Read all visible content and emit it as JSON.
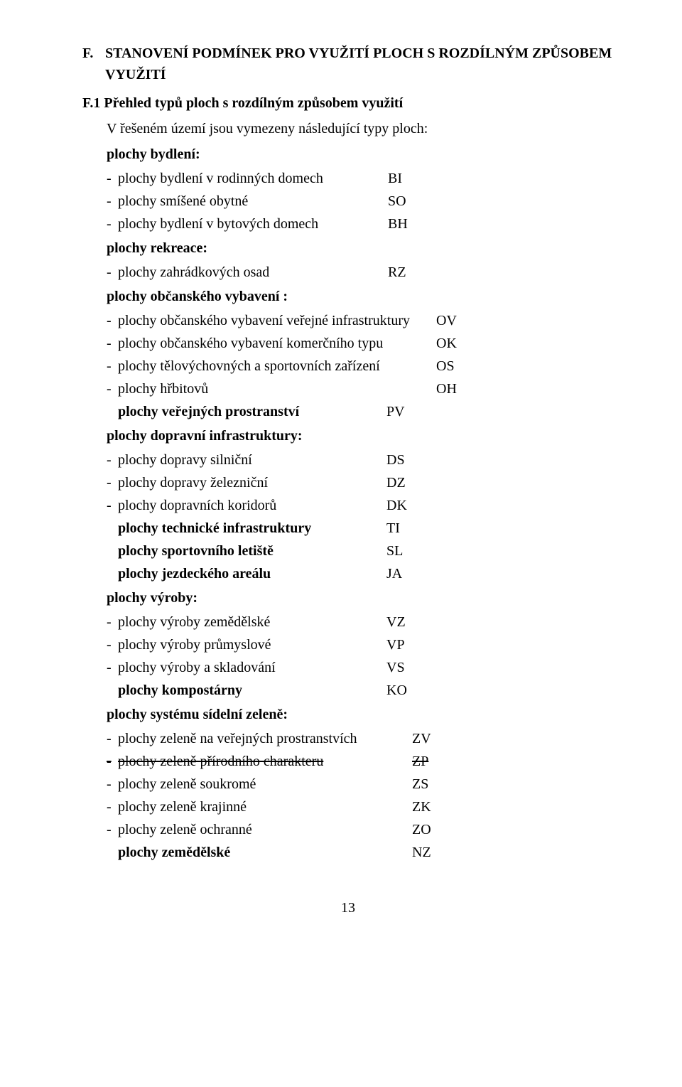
{
  "heading": {
    "letter": "F.",
    "text": "STANOVENÍ PODMÍNEK PRO VYUŽITÍ PLOCH S ROZDÍLNÝM ZPŮSOBEM VYUŽITÍ"
  },
  "subheading": "F.1 Přehled typů ploch s rozdílným způsobem využití",
  "intro": "V řešeném území jsou vymezeny následující typy ploch:",
  "groups": [
    {
      "label": "plochy bydlení:",
      "width": "w-narrow",
      "items": [
        {
          "label": "plochy bydlení v rodinných domech",
          "code": "BI",
          "dash": true
        },
        {
          "label": "plochy smíšené obytné",
          "code": "SO",
          "dash": true
        },
        {
          "label": "plochy bydlení v bytových domech",
          "code": "BH",
          "dash": true
        }
      ]
    },
    {
      "label": "plochy rekreace:",
      "width": "w-narrow",
      "items": [
        {
          "label": "plochy zahrádkových osad",
          "code": "RZ",
          "dash": true
        }
      ]
    },
    {
      "label": "plochy občanského vybavení :",
      "width": "w-wide",
      "items": [
        {
          "label": "plochy občanského vybavení veřejné infrastruktury",
          "code": "OV",
          "dash": true
        },
        {
          "label": "plochy občanského vybavení komerčního typu",
          "code": "OK",
          "dash": true
        },
        {
          "label": "plochy tělovýchovných a sportovních zařízení",
          "code": "OS",
          "dash": true
        },
        {
          "label": "plochy hřbitovů",
          "code": "OH",
          "dash": true
        }
      ]
    },
    {
      "label": null,
      "width": "w-narrow2",
      "items": [
        {
          "label": "plochy veřejných prostranství",
          "code": "PV",
          "dash": false,
          "bold": true
        }
      ]
    },
    {
      "label": "plochy dopravní infrastruktury:",
      "width": "w-narrow2",
      "items": [
        {
          "label": "plochy dopravy silniční",
          "code": "DS",
          "dash": true
        },
        {
          "label": "plochy dopravy železniční",
          "code": "DZ",
          "dash": true
        },
        {
          "label": "plochy dopravních koridorů",
          "code": "DK",
          "dash": true
        },
        {
          "label": "plochy technické infrastruktury",
          "code": "TI",
          "dash": false,
          "bold": true
        },
        {
          "label": "plochy sportovního letiště",
          "code": "SL",
          "dash": false,
          "bold": true
        },
        {
          "label": "plochy jezdeckého areálu",
          "code": "JA",
          "dash": false,
          "bold": true
        }
      ]
    },
    {
      "label": "plochy výroby:",
      "width": "w-narrow2",
      "items": [
        {
          "label": "plochy výroby zemědělské",
          "code": "VZ",
          "dash": true
        },
        {
          "label": "plochy výroby průmyslové",
          "code": "VP",
          "dash": true
        },
        {
          "label": "plochy výroby a skladování",
          "code": "VS",
          "dash": true
        },
        {
          "label": "plochy kompostárny",
          "code": "KO",
          "dash": false,
          "bold": true
        }
      ]
    },
    {
      "label": "plochy systému sídelní zeleně:",
      "width": "w-med",
      "items": [
        {
          "label": "plochy zeleně na veřejných prostranstvích",
          "code": "ZV",
          "dash": true
        },
        {
          "label": "plochy zeleně přírodního charakteru",
          "code": "ZP",
          "dash": true,
          "strike": true
        },
        {
          "label": "plochy zeleně soukromé",
          "code": "ZS",
          "dash": true
        },
        {
          "label": "plochy zeleně krajinné",
          "code": "ZK",
          "dash": true
        },
        {
          "label": "plochy zeleně ochranné",
          "code": "ZO",
          "dash": true
        },
        {
          "label": "plochy zemědělské",
          "code": "NZ",
          "dash": false,
          "bold": true
        }
      ]
    }
  ],
  "pageNumber": "13",
  "dashGlyph": "-"
}
